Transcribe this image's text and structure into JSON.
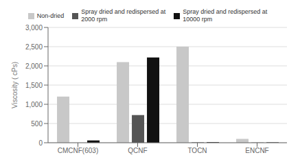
{
  "chart_data": {
    "type": "bar",
    "categories": [
      "CMCNF(603)",
      "QCNF",
      "TOCN",
      "ENCNF"
    ],
    "series": [
      {
        "name": "Non-dried",
        "color": "#c8c8c8",
        "values": [
          1200,
          2100,
          2500,
          100
        ]
      },
      {
        "name": "Spray dried and redispersed at\n2000 rpm",
        "color": "#555555",
        "values": [
          0,
          720,
          10,
          5
        ]
      },
      {
        "name": "Spray dried and redispersed at\n10000 rpm",
        "color": "#111111",
        "values": [
          60,
          2220,
          15,
          10
        ]
      }
    ],
    "ylabel": "Viscosity ( cPs)",
    "ylim": [
      0,
      3000
    ],
    "yticks": [
      0,
      500,
      {
        "value": 1000,
        "label": "1,000"
      },
      {
        "value": 1500,
        "label": "1,500"
      },
      {
        "value": 2000,
        "label": "2,000"
      },
      {
        "value": 2500,
        "label": "2,500"
      },
      {
        "value": 3000,
        "label": "3,000"
      }
    ],
    "grid": true,
    "legend": "top"
  }
}
